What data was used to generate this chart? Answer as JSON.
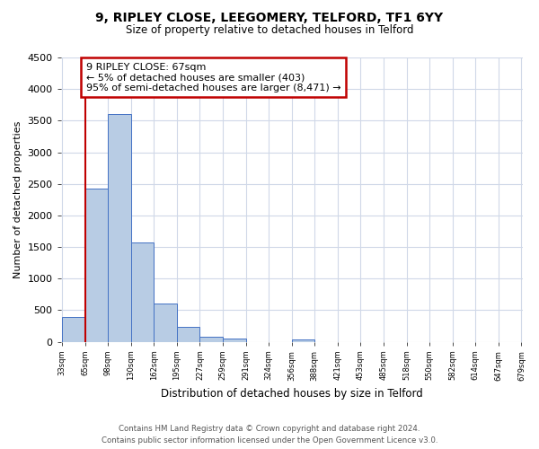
{
  "title": "9, RIPLEY CLOSE, LEEGOMERY, TELFORD, TF1 6YY",
  "subtitle": "Size of property relative to detached houses in Telford",
  "xlabel": "Distribution of detached houses by size in Telford",
  "ylabel": "Number of detached properties",
  "bar_values": [
    390,
    2430,
    3600,
    1575,
    600,
    240,
    80,
    50,
    0,
    0,
    40,
    0,
    0,
    0,
    0,
    0,
    0,
    0,
    0,
    0
  ],
  "categories": [
    "33sqm",
    "65sqm",
    "98sqm",
    "130sqm",
    "162sqm",
    "195sqm",
    "227sqm",
    "259sqm",
    "291sqm",
    "324sqm",
    "356sqm",
    "388sqm",
    "421sqm",
    "453sqm",
    "485sqm",
    "518sqm",
    "550sqm",
    "582sqm",
    "614sqm",
    "647sqm",
    "679sqm"
  ],
  "bar_color": "#b8cce4",
  "bar_edge_color": "#4472c4",
  "red_line_x": 1,
  "ylim": [
    0,
    4500
  ],
  "yticks": [
    0,
    500,
    1000,
    1500,
    2000,
    2500,
    3000,
    3500,
    4000,
    4500
  ],
  "annotation_text": "9 RIPLEY CLOSE: 67sqm\n← 5% of detached houses are smaller (403)\n95% of semi-detached houses are larger (8,471) →",
  "annotation_box_edge_color": "#c00000",
  "background_color": "#ffffff",
  "grid_color": "#d0d8e8",
  "footer_line1": "Contains HM Land Registry data © Crown copyright and database right 2024.",
  "footer_line2": "Contains public sector information licensed under the Open Government Licence v3.0."
}
